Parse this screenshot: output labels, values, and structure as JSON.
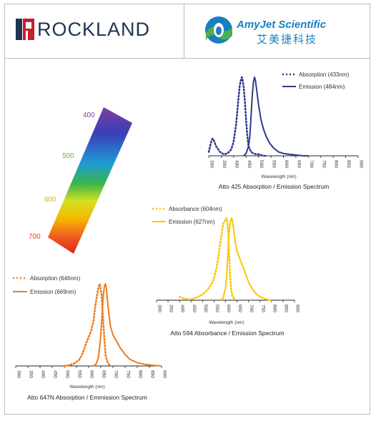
{
  "logos": {
    "rockland": "ROCKLAND",
    "amyjet_name": "AmyJet Scientific",
    "amyjet_cn": "艾美捷科技"
  },
  "colors": {
    "navy": "#2e3a8c",
    "yellow": "#f7c800",
    "orange": "#f07a1a",
    "rockland_text": "#1f3450",
    "amyjet_blue": "#1a7fbf",
    "amyjet_green": "#4caf50"
  },
  "spectrum_bar": {
    "labels": [
      "400",
      "500",
      "600",
      "700"
    ],
    "label_colors": [
      "#7a3fa0",
      "#6ab04c",
      "#e6a800",
      "#e0452a"
    ]
  },
  "chart_data": [
    {
      "type": "line",
      "title": "Atto 425 Absorption / Emission Spectrum",
      "xlabel": "Wavelength  (nm)",
      "xlim": [
        300,
        900
      ],
      "x_ticks": [
        "300",
        "350",
        "400",
        "450",
        "500",
        "550",
        "600",
        "650",
        "700",
        "750",
        "800",
        "850",
        "900"
      ],
      "series": [
        {
          "name": "Absorption (433nm)",
          "style": "dotted",
          "color": "#2e3a8c",
          "x": [
            300,
            310,
            315,
            320,
            330,
            345,
            360,
            375,
            390,
            400,
            410,
            420,
            425,
            430,
            433,
            436,
            440,
            445,
            450,
            455,
            460,
            470,
            480,
            490,
            500,
            510,
            520,
            530
          ],
          "y": [
            0.05,
            0.18,
            0.22,
            0.2,
            0.12,
            0.05,
            0.02,
            0.03,
            0.08,
            0.18,
            0.4,
            0.75,
            0.9,
            0.97,
            1.0,
            0.97,
            0.88,
            0.7,
            0.45,
            0.25,
            0.12,
            0.05,
            0.03,
            0.02,
            0.02,
            0.01,
            0.0,
            0.0
          ]
        },
        {
          "name": "Emission (484nm)",
          "style": "solid",
          "color": "#2e3a8c",
          "x": [
            440,
            450,
            460,
            465,
            470,
            475,
            480,
            484,
            488,
            492,
            500,
            510,
            520,
            530,
            545,
            560,
            580,
            600,
            620,
            650,
            680,
            700
          ],
          "y": [
            0.0,
            0.03,
            0.12,
            0.25,
            0.5,
            0.78,
            0.95,
            1.0,
            0.95,
            0.85,
            0.65,
            0.46,
            0.34,
            0.25,
            0.16,
            0.1,
            0.05,
            0.03,
            0.02,
            0.01,
            0.0,
            0.0
          ]
        }
      ]
    },
    {
      "type": "line",
      "title": "Atto 594 Absorbance / Emission Spectrum",
      "xlabel": "Wavelength  (nm)",
      "xlim": [
        300,
        900
      ],
      "x_ticks": [
        "300",
        "350",
        "400",
        "450",
        "500",
        "550",
        "600",
        "650",
        "700",
        "750",
        "800",
        "850",
        "900"
      ],
      "series": [
        {
          "name": "Absorbance (604nm)",
          "style": "dotted",
          "color": "#f7c800",
          "x": [
            400,
            420,
            440,
            460,
            480,
            500,
            520,
            540,
            550,
            560,
            570,
            580,
            590,
            600,
            604,
            608,
            612,
            616,
            620,
            625,
            630,
            640
          ],
          "y": [
            0.04,
            0.02,
            0.01,
            0.02,
            0.04,
            0.07,
            0.12,
            0.2,
            0.27,
            0.38,
            0.55,
            0.75,
            0.93,
            0.98,
            1.0,
            0.95,
            0.8,
            0.55,
            0.3,
            0.12,
            0.05,
            0.01
          ]
        },
        {
          "name": "Emission (627nm)",
          "style": "solid",
          "color": "#f7c800",
          "x": [
            580,
            590,
            600,
            605,
            610,
            615,
            620,
            627,
            632,
            640,
            650,
            660,
            670,
            680,
            690,
            700,
            720,
            740,
            760,
            780,
            800
          ],
          "y": [
            0.0,
            0.03,
            0.15,
            0.3,
            0.55,
            0.8,
            0.95,
            1.0,
            0.93,
            0.75,
            0.6,
            0.52,
            0.45,
            0.38,
            0.3,
            0.22,
            0.12,
            0.06,
            0.03,
            0.01,
            0.0
          ]
        }
      ]
    },
    {
      "type": "line",
      "title": "Atto 647N Absorption / Emmission Spectrum",
      "xlabel": "Wavelength  (nm)",
      "xlim": [
        300,
        900
      ],
      "x_ticks": [
        "300",
        "350",
        "400",
        "450",
        "500",
        "550",
        "600",
        "650",
        "700",
        "750",
        "800",
        "850",
        "900"
      ],
      "series": [
        {
          "name": "Absorption (646nm)",
          "style": "dotted",
          "color": "#f07a1a",
          "x": [
            500,
            520,
            540,
            560,
            575,
            590,
            600,
            610,
            620,
            630,
            640,
            646,
            652,
            658,
            664,
            670,
            680,
            690
          ],
          "y": [
            0.0,
            0.01,
            0.03,
            0.07,
            0.15,
            0.28,
            0.35,
            0.42,
            0.55,
            0.78,
            0.95,
            1.0,
            0.9,
            0.65,
            0.35,
            0.12,
            0.03,
            0.0
          ]
        },
        {
          "name": "Emission (669nm)",
          "style": "solid",
          "color": "#f07a1a",
          "x": [
            620,
            630,
            640,
            648,
            655,
            660,
            665,
            669,
            673,
            680,
            690,
            700,
            715,
            730,
            750,
            770,
            800,
            830,
            860,
            900
          ],
          "y": [
            0.0,
            0.02,
            0.1,
            0.3,
            0.6,
            0.85,
            0.97,
            1.0,
            0.95,
            0.72,
            0.48,
            0.38,
            0.3,
            0.22,
            0.14,
            0.08,
            0.04,
            0.02,
            0.01,
            0.0
          ]
        }
      ]
    }
  ]
}
